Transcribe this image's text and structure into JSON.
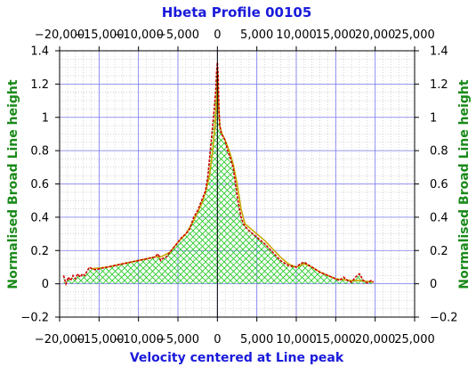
{
  "chart_data": {
    "type": "area",
    "title": "Hbeta Profile 00105",
    "xlabel": "Velocity centered at Line peak",
    "ylabel": "Normalised Broad Line height",
    "xlim": [
      -20000,
      25000
    ],
    "ylim": [
      -0.2,
      1.4
    ],
    "x_major_ticks": [
      -20000,
      -15000,
      -10000,
      -5000,
      0,
      5000,
      10000,
      15000,
      20000,
      25000
    ],
    "x_tick_labels": [
      "−20,000",
      "−15,000",
      "−10,000",
      "−5,000",
      "0",
      "5,000",
      "10,000",
      "15,000",
      "20,000",
      "25,000"
    ],
    "y_major_ticks": [
      -0.2,
      0,
      0.2,
      0.4,
      0.6,
      0.8,
      1,
      1.2,
      1.4
    ],
    "y_tick_labels": [
      "−0.2",
      "0",
      "0.2",
      "0.4",
      "0.6",
      "0.8",
      "1",
      "1.2",
      "1.4"
    ],
    "grid": true,
    "zero_line_vertical": 0,
    "colors": {
      "title": "#1a1adb",
      "xlabel": "#1a1adb",
      "ylabel": "#1a8a1a",
      "observed_line": "#d00000",
      "model_line": "#c8a800",
      "fill_hatch": "#22cc22",
      "major_grid": "#7777ee",
      "minor_grid": "#bbbbbb",
      "zero_line": "#000000"
    },
    "series": [
      {
        "style": "observed-dashed-red",
        "x": [
          -19500,
          -19200,
          -18900,
          -18600,
          -18300,
          -18000,
          -17700,
          -17400,
          -17100,
          -16800,
          -16500,
          -16200,
          -15900,
          -15500,
          -15000,
          -14000,
          -13000,
          -12000,
          -11000,
          -10000,
          -9000,
          -8000,
          -7500,
          -7200,
          -7000,
          -6500,
          -6000,
          -5500,
          -5000,
          -4500,
          -4000,
          -3500,
          -3000,
          -2500,
          -2000,
          -1500,
          -1200,
          -900,
          -600,
          -400,
          -200,
          -100,
          0,
          100,
          200,
          300,
          500,
          800,
          1000,
          1300,
          1600,
          2000,
          2300,
          2600,
          3000,
          3300,
          3600,
          4000,
          5000,
          6000,
          7000,
          8000,
          9000,
          10000,
          10500,
          11000,
          12000,
          13000,
          14000,
          15000,
          15500,
          16000,
          16500,
          17000,
          17500,
          18000,
          18500,
          19000,
          19500,
          19800
        ],
        "y": [
          0.05,
          0.0,
          0.04,
          0.02,
          0.05,
          0.03,
          0.06,
          0.04,
          0.06,
          0.05,
          0.08,
          0.1,
          0.09,
          0.085,
          0.09,
          0.1,
          0.11,
          0.12,
          0.13,
          0.14,
          0.15,
          0.16,
          0.18,
          0.14,
          0.15,
          0.16,
          0.19,
          0.22,
          0.25,
          0.28,
          0.3,
          0.33,
          0.4,
          0.44,
          0.5,
          0.56,
          0.65,
          0.8,
          0.95,
          1.05,
          1.17,
          1.28,
          1.33,
          1.25,
          1.05,
          0.95,
          0.9,
          0.88,
          0.86,
          0.8,
          0.76,
          0.7,
          0.6,
          0.5,
          0.4,
          0.36,
          0.34,
          0.32,
          0.28,
          0.24,
          0.19,
          0.14,
          0.11,
          0.1,
          0.12,
          0.13,
          0.1,
          0.07,
          0.05,
          0.03,
          0.02,
          0.04,
          0.02,
          0.01,
          0.04,
          0.06,
          0.02,
          0.005,
          0.02,
          0.01
        ]
      },
      {
        "style": "model-yellow-filled",
        "x": [
          -16000,
          -15000,
          -14000,
          -13000,
          -12000,
          -11000,
          -10000,
          -9000,
          -8000,
          -7000,
          -6000,
          -5000,
          -4000,
          -3000,
          -2000,
          -1500,
          -1000,
          -600,
          -300,
          -100,
          0,
          100,
          300,
          600,
          1000,
          1500,
          2000,
          2500,
          3000,
          3500,
          4000,
          5000,
          6000,
          7000,
          8000,
          9000,
          10000,
          11000,
          12000,
          13000,
          14000,
          15000,
          16000,
          17000,
          18000,
          19000,
          19800
        ],
        "y": [
          0.09,
          0.095,
          0.1,
          0.11,
          0.12,
          0.13,
          0.14,
          0.15,
          0.16,
          0.165,
          0.19,
          0.25,
          0.3,
          0.38,
          0.48,
          0.55,
          0.65,
          0.8,
          0.95,
          1.1,
          1.3,
          1.12,
          0.95,
          0.9,
          0.86,
          0.8,
          0.72,
          0.6,
          0.45,
          0.36,
          0.34,
          0.3,
          0.26,
          0.21,
          0.16,
          0.12,
          0.1,
          0.12,
          0.1,
          0.07,
          0.05,
          0.03,
          0.025,
          0.02,
          0.02,
          0.015,
          0.01
        ]
      }
    ]
  }
}
